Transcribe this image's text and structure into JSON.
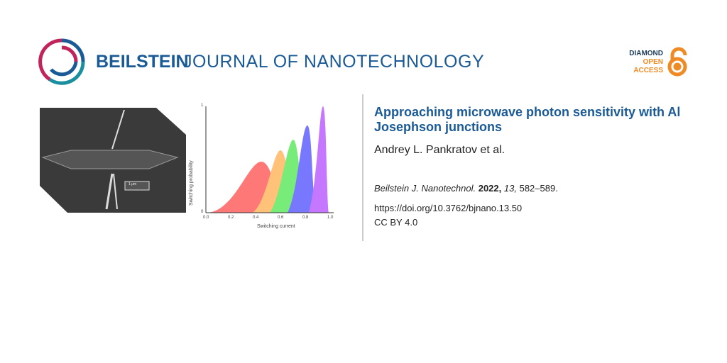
{
  "header": {
    "brand": "BEILSTEIN",
    "journal": "JOURNAL OF NANOTECHNOLOGY",
    "badge": [
      "DIAMOND",
      "OPEN",
      "ACCESS"
    ]
  },
  "figure": {
    "scale_label": "1 μm",
    "y_label": "Switching probability",
    "x_label": "Switching current",
    "y_ticks": [
      "1",
      "0"
    ],
    "x_ticks": [
      "0.0",
      "0.2",
      "0.4",
      "0.6",
      "0.8",
      "1.0"
    ]
  },
  "article": {
    "title": "Approaching microwave photon sensitivity with Al Josephson junctions",
    "authors": "Andrey L. Pankratov et al.",
    "journal": "Beilstein J. Nanotechnol.",
    "year": "2022,",
    "volume": "13,",
    "pages": "582–589.",
    "doi": "https://doi.org/10.3762/bjnano.13.50",
    "license": "CC BY 4.0"
  }
}
